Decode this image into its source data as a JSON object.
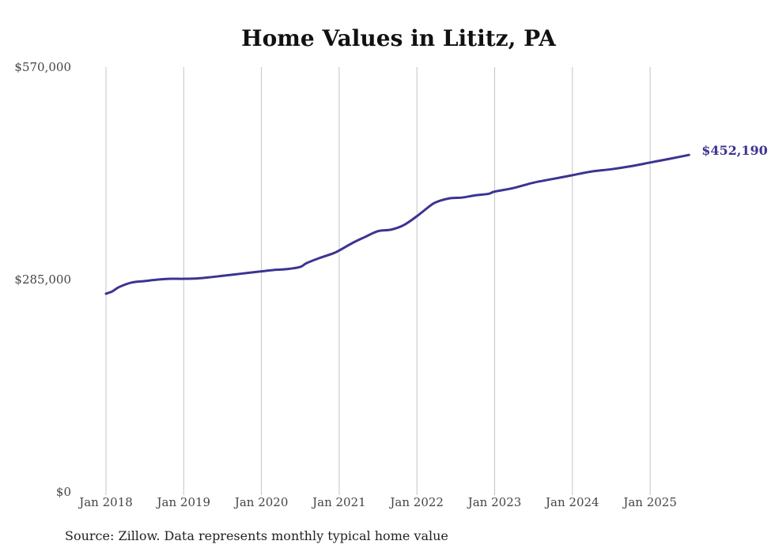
{
  "chart_data": {
    "type": "line",
    "title": "Home Values in Lititz, PA",
    "source": "Source: Zillow. Data represents monthly typical home value",
    "xlabel": "",
    "ylabel": "",
    "ylim": [
      0,
      570000
    ],
    "y_ticks": [
      {
        "value": 0,
        "label": "$0"
      },
      {
        "value": 285000,
        "label": "$285,000"
      },
      {
        "value": 570000,
        "label": "$570,000"
      }
    ],
    "x_ticks": [
      {
        "value": 2018.0,
        "label": "Jan 2018"
      },
      {
        "value": 2019.0,
        "label": "Jan 2019"
      },
      {
        "value": 2020.0,
        "label": "Jan 2020"
      },
      {
        "value": 2021.0,
        "label": "Jan 2021"
      },
      {
        "value": 2022.0,
        "label": "Jan 2022"
      },
      {
        "value": 2023.0,
        "label": "Jan 2023"
      },
      {
        "value": 2024.0,
        "label": "Jan 2024"
      },
      {
        "value": 2025.0,
        "label": "Jan 2025"
      }
    ],
    "grid": "vertical",
    "series": [
      {
        "name": "Typical home value",
        "color": "#3b3491",
        "end_label": "$452,190",
        "x": [
          2018.0,
          2018.08,
          2018.17,
          2018.33,
          2018.5,
          2018.67,
          2018.83,
          2019.0,
          2019.17,
          2019.33,
          2019.5,
          2019.67,
          2019.83,
          2020.0,
          2020.17,
          2020.33,
          2020.5,
          2020.58,
          2020.75,
          2020.92,
          2021.0,
          2021.17,
          2021.33,
          2021.5,
          2021.67,
          2021.83,
          2022.0,
          2022.17,
          2022.25,
          2022.42,
          2022.58,
          2022.75,
          2022.92,
          2023.0,
          2023.25,
          2023.5,
          2023.75,
          2024.0,
          2024.25,
          2024.5,
          2024.75,
          2025.0,
          2025.25,
          2025.5
        ],
        "values": [
          266000,
          269000,
          275000,
          281000,
          283000,
          285000,
          286000,
          286000,
          286500,
          288000,
          290000,
          292000,
          294000,
          296000,
          298000,
          299000,
          302000,
          307000,
          314000,
          320000,
          324000,
          334000,
          342000,
          350000,
          352000,
          358000,
          370000,
          384000,
          389000,
          394000,
          395000,
          398000,
          400000,
          403000,
          408000,
          415000,
          420000,
          425000,
          430000,
          433000,
          437000,
          442000,
          447000,
          452190
        ]
      }
    ]
  }
}
